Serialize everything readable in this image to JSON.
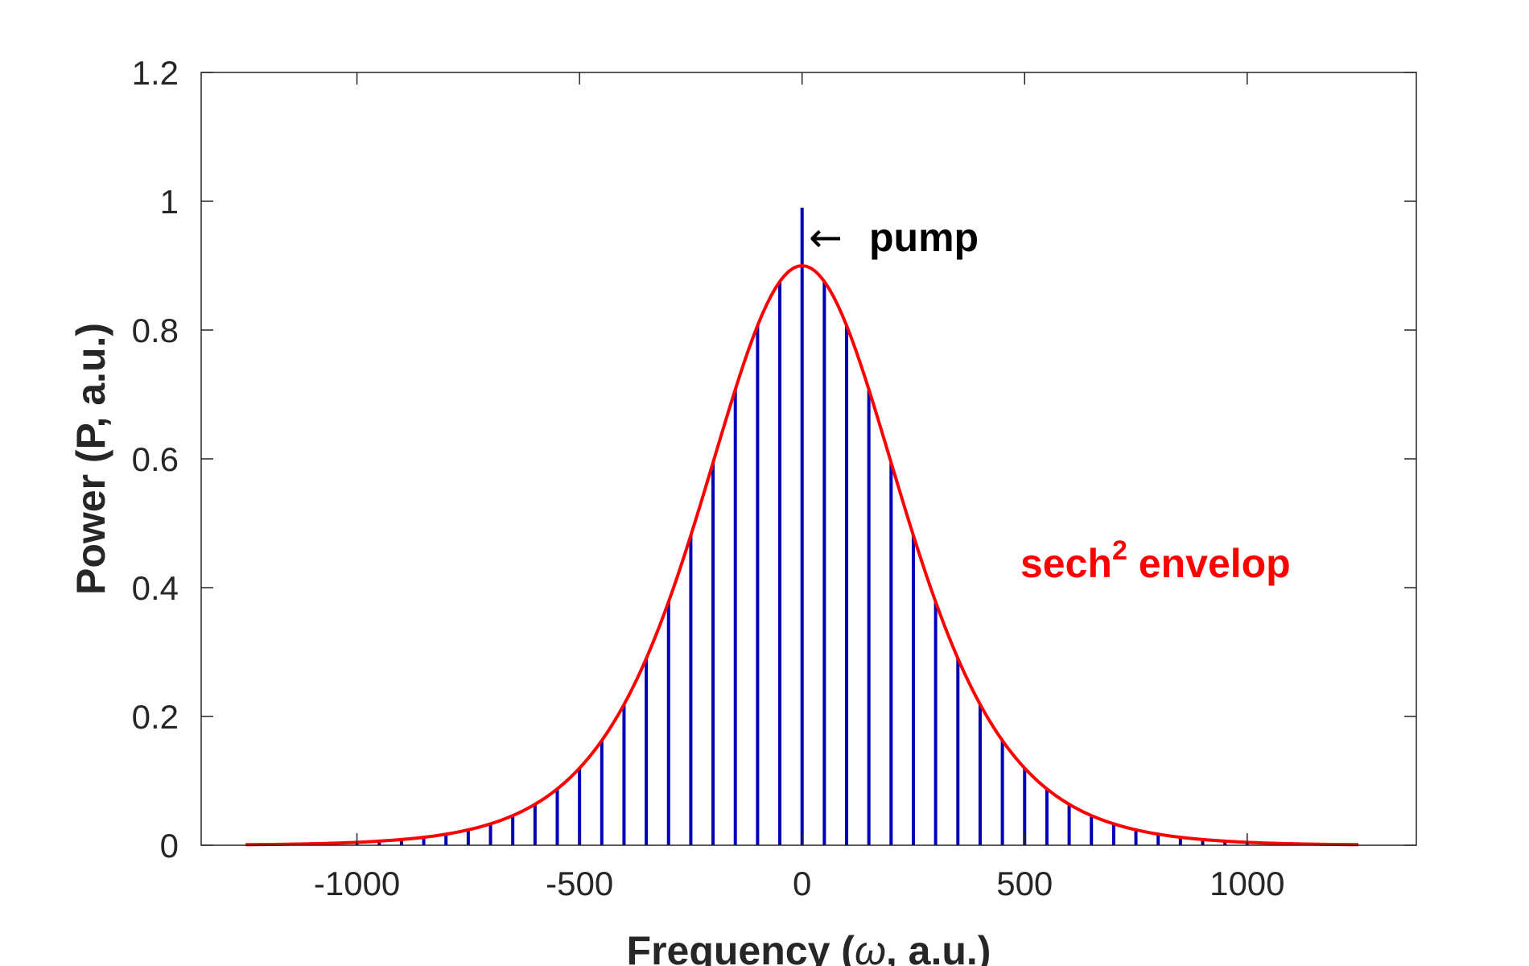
{
  "chart_data": {
    "type": "stem",
    "xlabel": {
      "prefix": "Frequency (",
      "symbol": "ω",
      "suffix": ", a.u.)"
    },
    "ylabel": "Power (P, a.u.)",
    "xlim": [
      -1350,
      1380
    ],
    "ylim": [
      0,
      1.2
    ],
    "xticks": [
      -1000,
      -500,
      0,
      500,
      1000
    ],
    "xtick_labels": [
      "-1000",
      "-500",
      "0",
      "500",
      "1000"
    ],
    "yticks": [
      0,
      0.2,
      0.4,
      0.6,
      0.8,
      1,
      1.2
    ],
    "ytick_labels": [
      "0",
      "0.2",
      "0.4",
      "0.6",
      "0.8",
      "1",
      "1.2"
    ],
    "grid": false,
    "series": [
      {
        "kind": "stems",
        "color": "#0000b4",
        "x_start": -1250,
        "x_step": 50,
        "x_end": 1250,
        "envelope_peak": 0.9,
        "envelope_width": 300,
        "pump": {
          "x": 0,
          "y": 0.99
        }
      },
      {
        "kind": "envelope",
        "color": "#ff0000",
        "formula": "0.9*sech(x/300)^2",
        "x_range": [
          -1250,
          1250
        ]
      }
    ],
    "annotations": {
      "pump_arrow": "←",
      "pump_label": "pump",
      "envelope_label_main": "sech",
      "envelope_label_sup": "2",
      "envelope_label_rest": " envelop"
    }
  }
}
